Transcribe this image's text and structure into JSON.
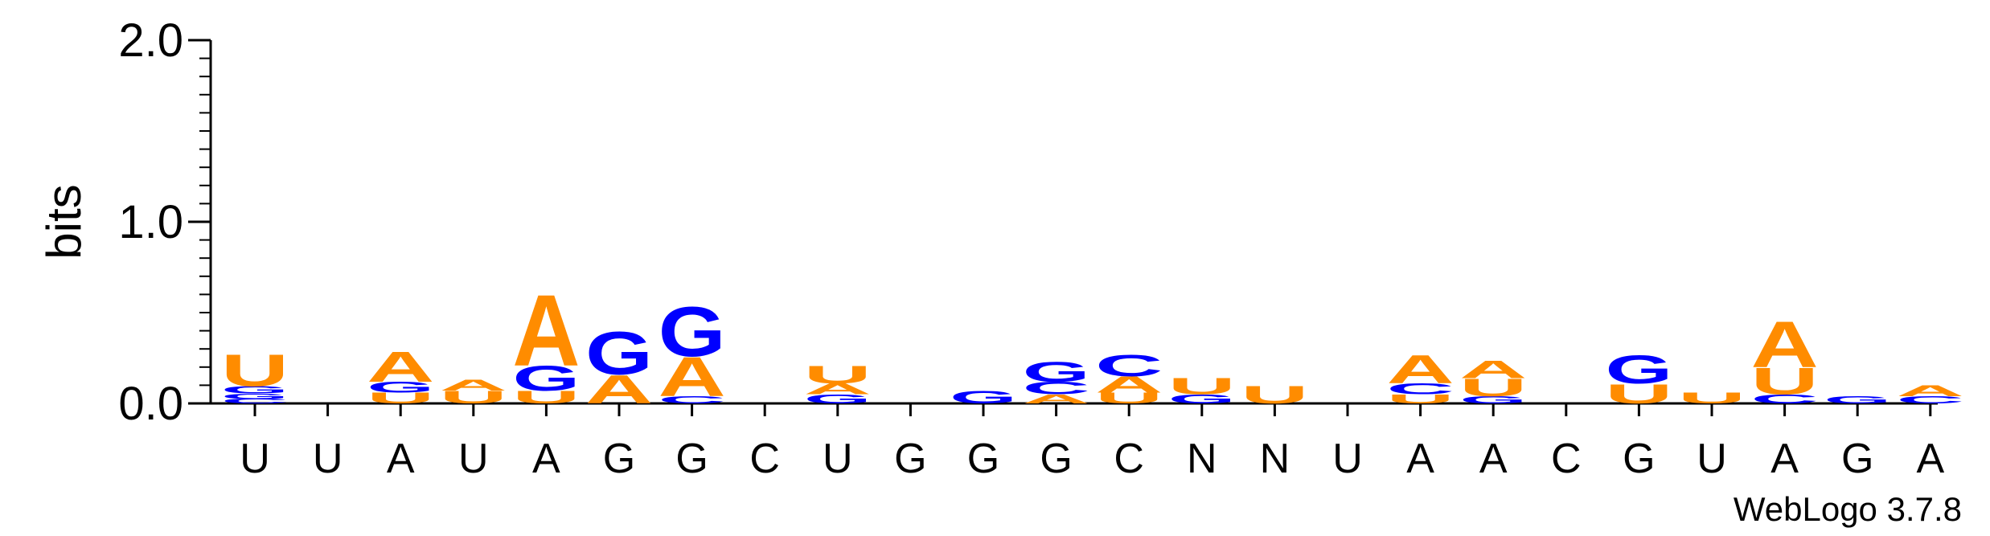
{
  "chart_data": {
    "type": "sequence-logo",
    "title": "",
    "ylabel": "bits",
    "ylim": [
      0,
      2.0
    ],
    "yticks": [
      "0.0",
      "1.0",
      "2.0"
    ],
    "xlabels": [
      "U",
      "U",
      "A",
      "U",
      "A",
      "G",
      "G",
      "C",
      "U",
      "G",
      "G",
      "G",
      "C",
      "N",
      "N",
      "U",
      "A",
      "A",
      "C",
      "G",
      "U",
      "A",
      "G",
      "A"
    ],
    "credit": "WebLogo 3.7.8",
    "colors": {
      "A": "#ff8c00",
      "U": "#ff8c00",
      "G": "#0000ff",
      "C": "#0000ff"
    },
    "stacks": [
      [
        [
          "C",
          0.025
        ],
        [
          "G",
          0.03
        ],
        [
          "G",
          0.04
        ],
        [
          "U",
          0.18
        ]
      ],
      [],
      [
        [
          "U",
          0.06
        ],
        [
          "G",
          0.06
        ],
        [
          "A",
          0.17
        ]
      ],
      [
        [
          "U",
          0.07
        ],
        [
          "A",
          0.06
        ]
      ],
      [
        [
          "U",
          0.07
        ],
        [
          "G",
          0.14
        ],
        [
          "A",
          0.4
        ]
      ],
      [
        [
          "A",
          0.16
        ],
        [
          "G",
          0.24
        ]
      ],
      [
        [
          "C",
          0.04
        ],
        [
          "A",
          0.22
        ],
        [
          "G",
          0.28
        ]
      ],
      [],
      [
        [
          "G",
          0.05
        ],
        [
          "A",
          0.06
        ],
        [
          "U",
          0.1
        ]
      ],
      [],
      [
        [
          "G",
          0.07
        ]
      ],
      [
        [
          "A",
          0.05
        ],
        [
          "C",
          0.07
        ],
        [
          "G",
          0.11
        ]
      ],
      [
        [
          "U",
          0.06
        ],
        [
          "A",
          0.09
        ],
        [
          "C",
          0.12
        ]
      ],
      [
        [
          "G",
          0.05
        ],
        [
          "U",
          0.09
        ]
      ],
      [
        [
          "U",
          0.1
        ]
      ],
      [],
      [
        [
          "U",
          0.05
        ],
        [
          "C",
          0.06
        ],
        [
          "A",
          0.16
        ]
      ],
      [
        [
          "G",
          0.04
        ],
        [
          "U",
          0.1
        ],
        [
          "A",
          0.1
        ]
      ],
      [],
      [
        [
          "U",
          0.11
        ],
        [
          "G",
          0.16
        ]
      ],
      [
        [
          "U",
          0.06
        ]
      ],
      [
        [
          "C",
          0.05
        ],
        [
          "U",
          0.15
        ],
        [
          "A",
          0.26
        ]
      ],
      [
        [
          "G",
          0.04
        ]
      ],
      [
        [
          "C",
          0.04
        ],
        [
          "A",
          0.06
        ]
      ]
    ]
  }
}
